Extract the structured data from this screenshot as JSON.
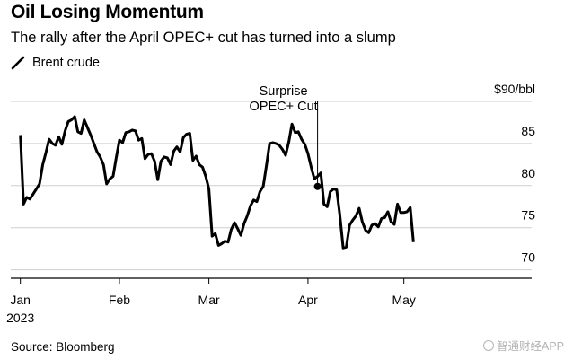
{
  "chart_data": {
    "type": "line",
    "title": "Oil Losing Momentum",
    "subtitle": "The rally after the April OPEC+ cut has turned into a slump",
    "legend": [
      {
        "name": "Brent crude",
        "color": "#000000"
      }
    ],
    "y_unit_label": "$90/bbl",
    "yticks": [
      85,
      80,
      75,
      70
    ],
    "ylim": [
      69,
      90
    ],
    "grid": true,
    "x_domain": [
      -3,
      160
    ],
    "xticks": [
      {
        "label": "Jan",
        "day": 0
      },
      {
        "label": "Feb",
        "day": 31
      },
      {
        "label": "Mar",
        "day": 59
      },
      {
        "label": "Apr",
        "day": 90
      },
      {
        "label": "May",
        "day": 120
      }
    ],
    "year_label": "2023",
    "annotation": {
      "line1": "Surprise",
      "line2": "OPEC+ Cut",
      "day": 93,
      "value": 79.9
    },
    "series": [
      {
        "name": "Brent crude",
        "points": [
          [
            0,
            86.0
          ],
          [
            1,
            77.8
          ],
          [
            2,
            78.6
          ],
          [
            3,
            78.4
          ],
          [
            4,
            79.0
          ],
          [
            5,
            79.6
          ],
          [
            6,
            80.2
          ],
          [
            7,
            82.5
          ],
          [
            8,
            83.9
          ],
          [
            9,
            85.5
          ],
          [
            10,
            85.0
          ],
          [
            11,
            84.8
          ],
          [
            12,
            85.8
          ],
          [
            13,
            84.9
          ],
          [
            14,
            86.5
          ],
          [
            15,
            87.6
          ],
          [
            16,
            87.8
          ],
          [
            17,
            88.2
          ],
          [
            18,
            86.4
          ],
          [
            19,
            86.2
          ],
          [
            20,
            87.8
          ],
          [
            22,
            86.0
          ],
          [
            23,
            85.0
          ],
          [
            24,
            84.0
          ],
          [
            25,
            83.4
          ],
          [
            26,
            82.5
          ],
          [
            27,
            80.2
          ],
          [
            28,
            80.8
          ],
          [
            29,
            81.1
          ],
          [
            30,
            83.3
          ],
          [
            31,
            85.4
          ],
          [
            32,
            85.1
          ],
          [
            33,
            86.3
          ],
          [
            34,
            86.4
          ],
          [
            35,
            86.6
          ],
          [
            36,
            86.5
          ],
          [
            37,
            85.4
          ],
          [
            38,
            85.6
          ],
          [
            39,
            83.2
          ],
          [
            40,
            83.7
          ],
          [
            41,
            83.8
          ],
          [
            42,
            82.9
          ],
          [
            43,
            80.7
          ],
          [
            44,
            82.9
          ],
          [
            45,
            83.4
          ],
          [
            46,
            83.3
          ],
          [
            47,
            82.5
          ],
          [
            48,
            84.1
          ],
          [
            49,
            84.6
          ],
          [
            50,
            84.0
          ],
          [
            51,
            85.7
          ],
          [
            52,
            86.1
          ],
          [
            53,
            86.2
          ],
          [
            54,
            83.0
          ],
          [
            55,
            83.5
          ],
          [
            56,
            82.5
          ],
          [
            57,
            82.2
          ],
          [
            58,
            81.1
          ],
          [
            59,
            79.6
          ],
          [
            60,
            74.0
          ],
          [
            61,
            74.3
          ],
          [
            62,
            72.9
          ],
          [
            63,
            73.1
          ],
          [
            64,
            73.4
          ],
          [
            65,
            73.3
          ],
          [
            66,
            74.8
          ],
          [
            67,
            75.6
          ],
          [
            68,
            74.9
          ],
          [
            69,
            74.1
          ],
          [
            70,
            75.5
          ],
          [
            71,
            76.4
          ],
          [
            72,
            77.6
          ],
          [
            73,
            78.3
          ],
          [
            74,
            78.1
          ],
          [
            75,
            79.3
          ],
          [
            76,
            79.9
          ],
          [
            77,
            82.4
          ],
          [
            78,
            85.0
          ],
          [
            79,
            85.1
          ],
          [
            80,
            85.0
          ],
          [
            81,
            84.8
          ],
          [
            82,
            84.3
          ],
          [
            83,
            83.6
          ],
          [
            84,
            85.2
          ],
          [
            85,
            87.3
          ],
          [
            86,
            86.3
          ],
          [
            87,
            86.4
          ],
          [
            88,
            85.5
          ],
          [
            89,
            84.9
          ],
          [
            90,
            83.8
          ],
          [
            91,
            82.2
          ],
          [
            92,
            80.8
          ],
          [
            93,
            81.1
          ],
          [
            94,
            81.5
          ],
          [
            95,
            77.8
          ],
          [
            96,
            77.5
          ],
          [
            97,
            79.3
          ],
          [
            98,
            79.6
          ],
          [
            99,
            79.5
          ],
          [
            100,
            76.4
          ],
          [
            101,
            72.6
          ],
          [
            102,
            72.7
          ],
          [
            103,
            75.3
          ],
          [
            104,
            75.9
          ],
          [
            105,
            76.4
          ],
          [
            106,
            77.3
          ],
          [
            107,
            75.7
          ],
          [
            108,
            74.7
          ],
          [
            109,
            74.4
          ],
          [
            110,
            75.3
          ],
          [
            111,
            75.5
          ],
          [
            112,
            75.1
          ],
          [
            113,
            76.1
          ],
          [
            114,
            76.2
          ],
          [
            115,
            76.9
          ],
          [
            116,
            75.7
          ],
          [
            117,
            75.4
          ],
          [
            118,
            77.8
          ],
          [
            119,
            76.8
          ],
          [
            120,
            76.8
          ],
          [
            121,
            76.9
          ],
          [
            122,
            77.4
          ],
          [
            123,
            73.3
          ]
        ]
      }
    ]
  },
  "source": "Source: Bloomberg",
  "watermark": "智通财经APP"
}
